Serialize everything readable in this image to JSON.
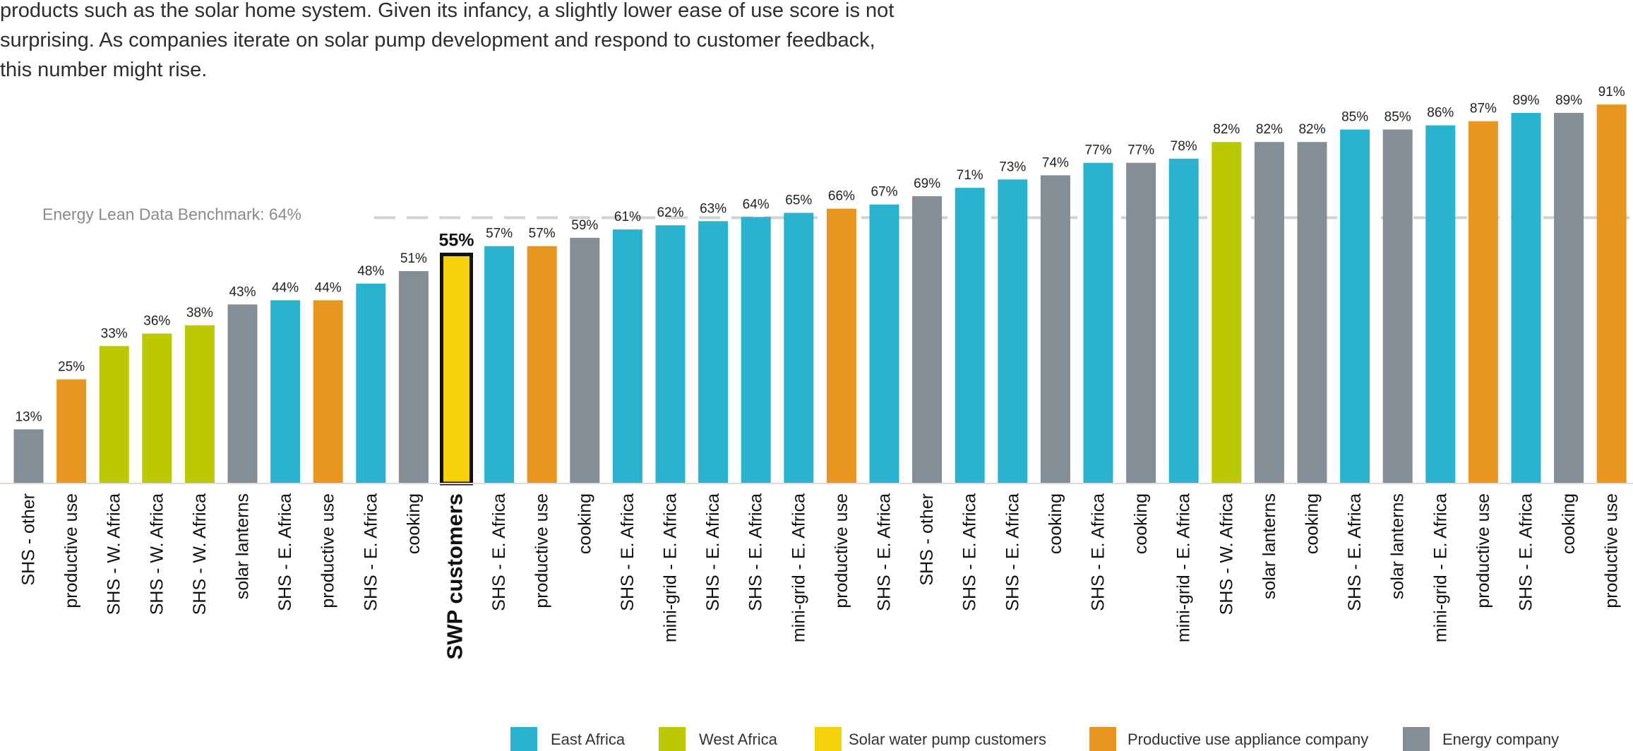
{
  "intro_text": "products such as the solar home system. Given its infancy, a slightly lower ease of use score is not\nsurprising. As companies iterate on solar pump development and respond to customer feedback,\nthis number might rise.",
  "colors": {
    "east_africa": "#29b3cf",
    "west_africa": "#bcc800",
    "solar_water_pump": "#f5d10a",
    "productive_use": "#e8961f",
    "energy_company": "#848e97",
    "benchmark_line": "#d3d3d3"
  },
  "chart_data": {
    "type": "bar",
    "ylim": [
      0,
      100
    ],
    "grid": false,
    "legend_position": "bottom",
    "benchmark": {
      "label": "Energy Lean Data Benchmark: 64%",
      "value": 64
    },
    "highlight_index": 10,
    "categories": [
      "SHS - other",
      "productive use",
      "SHS - W. Africa",
      "SHS - W. Africa",
      "SHS - W. Africa",
      "solar lanterns",
      "SHS - E. Africa",
      "productive use",
      "SHS - E. Africa",
      "cooking",
      "SWP customers",
      "SHS - E. Africa",
      "productive use",
      "cooking",
      "SHS - E. Africa",
      "mini-grid - E. Africa",
      "SHS - E. Africa",
      "SHS - E. Africa",
      "mini-grid - E. Africa",
      "productive use",
      "SHS - E. Africa",
      "SHS - other",
      "SHS - E. Africa",
      "SHS - E. Africa",
      "cooking",
      "SHS - E. Africa",
      "cooking",
      "mini-grid - E. Africa",
      "SHS - W. Africa",
      "solar lanterns",
      "cooking",
      "SHS - E. Africa",
      "solar lanterns",
      "mini-grid - E. Africa",
      "productive use",
      "SHS - E. Africa",
      "cooking",
      "productive use"
    ],
    "values": [
      13,
      25,
      33,
      36,
      38,
      43,
      44,
      44,
      48,
      51,
      55,
      57,
      57,
      59,
      61,
      62,
      63,
      64,
      65,
      66,
      67,
      69,
      71,
      73,
      74,
      77,
      77,
      78,
      82,
      82,
      82,
      85,
      85,
      86,
      87,
      89,
      89,
      91
    ],
    "value_labels": [
      "13%",
      "25%",
      "33%",
      "36%",
      "38%",
      "43%",
      "44%",
      "44%",
      "48%",
      "51%",
      "55%",
      "57%",
      "57%",
      "59%",
      "61%",
      "62%",
      "63%",
      "64%",
      "65%",
      "66%",
      "67%",
      "69%",
      "71%",
      "73%",
      "74%",
      "77%",
      "77%",
      "78%",
      "82%",
      "82%",
      "82%",
      "85%",
      "85%",
      "86%",
      "87%",
      "89%",
      "89%",
      "91%"
    ],
    "groups": [
      "energy",
      "productive",
      "west",
      "west",
      "west",
      "energy",
      "east",
      "productive",
      "east",
      "energy",
      "swp",
      "east",
      "productive",
      "energy",
      "east",
      "east",
      "east",
      "east",
      "east",
      "productive",
      "east",
      "energy",
      "east",
      "east",
      "energy",
      "east",
      "energy",
      "east",
      "west",
      "energy",
      "energy",
      "east",
      "energy",
      "east",
      "productive",
      "east",
      "energy",
      "productive"
    ],
    "legend": [
      {
        "group": "east",
        "label": "East Africa"
      },
      {
        "group": "west",
        "label": "West Africa"
      },
      {
        "group": "swp",
        "label": "Solar water pump customers"
      },
      {
        "group": "productive",
        "label": "Productive use appliance company"
      },
      {
        "group": "energy",
        "label": "Energy company"
      }
    ]
  }
}
